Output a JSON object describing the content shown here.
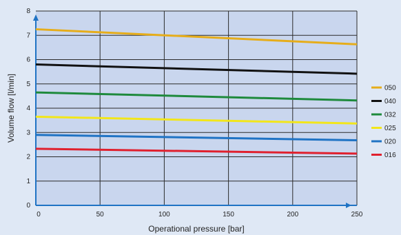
{
  "chart_data": {
    "type": "line",
    "xlabel": "Operational pressure [bar]",
    "ylabel": "Volume flow [l/min]",
    "xlim": [
      0,
      250
    ],
    "ylim": [
      0,
      8
    ],
    "x_ticks": [
      0,
      50,
      100,
      150,
      200,
      250
    ],
    "y_ticks": [
      0,
      1,
      2,
      3,
      4,
      5,
      6,
      7,
      8
    ],
    "grid": true,
    "legend_position": "right",
    "x": [
      0,
      250
    ],
    "series": [
      {
        "name": "050",
        "values": [
          7.25,
          6.63
        ],
        "color": "#e6ad1a"
      },
      {
        "name": "040",
        "values": [
          5.8,
          5.42
        ],
        "color": "#111111"
      },
      {
        "name": "032",
        "values": [
          4.65,
          4.32
        ],
        "color": "#1e8a3c"
      },
      {
        "name": "025",
        "values": [
          3.65,
          3.37
        ],
        "color": "#f2e61a"
      },
      {
        "name": "020",
        "values": [
          2.9,
          2.68
        ],
        "color": "#1f73c4"
      },
      {
        "name": "016",
        "values": [
          2.33,
          2.13
        ],
        "color": "#e0202e"
      }
    ],
    "colors": {
      "plot_bg": "#c9d6ee",
      "grid": "#2a2a2a",
      "axis": "#1f73c4",
      "page_bg": "#dfe8f5"
    }
  }
}
